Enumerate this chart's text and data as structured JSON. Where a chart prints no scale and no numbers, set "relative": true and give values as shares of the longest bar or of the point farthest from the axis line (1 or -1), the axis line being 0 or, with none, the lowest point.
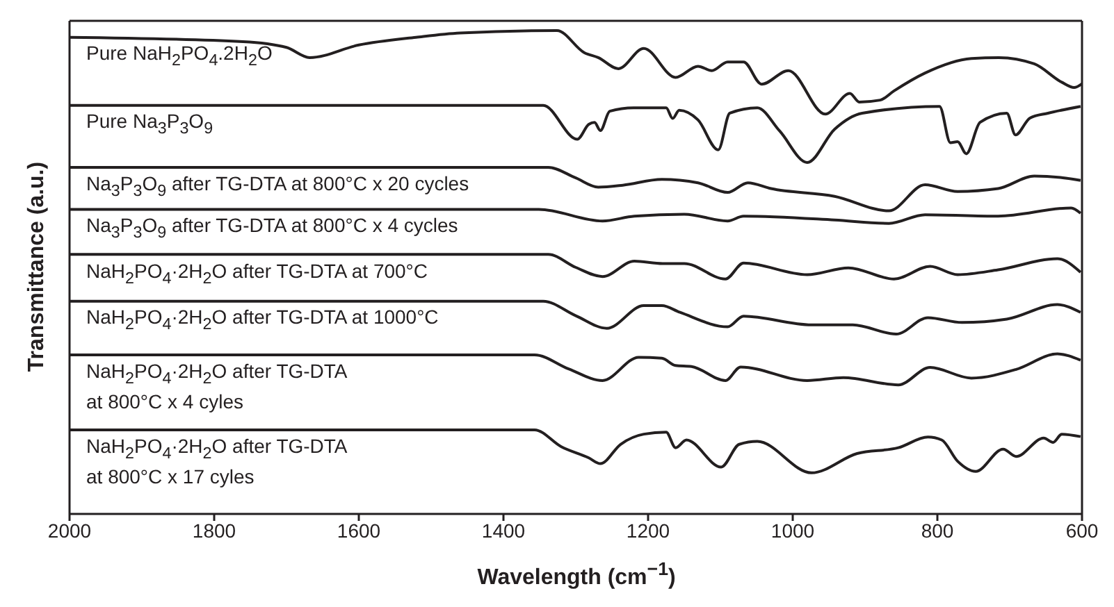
{
  "chart_data": {
    "type": "line",
    "relative": true,
    "xlabel": "Wavelength (cm$^{−1}$)",
    "ylabel": "Transmittance (a.u.)",
    "xlim": [
      2000,
      600
    ],
    "xticks": [
      2000,
      1800,
      1600,
      1400,
      1200,
      1000,
      800,
      600
    ],
    "tick_labels": "x",
    "marker": "none",
    "line_style": "solid",
    "series": [
      {
        "name": "Pure NaH$_{2}$PO$_{4}$.2H$_{2}$O",
        "color": "#231f20",
        "x": [
          2000,
          1760,
          1700,
          1668,
          1600,
          1521,
          1460,
          1326,
          1288,
          1269,
          1241,
          1206,
          1162,
          1131,
          1112,
          1090,
          1068,
          1043,
          1006,
          955,
          921,
          908,
          879,
          860,
          817,
          753,
          715,
          666,
          628,
          611,
          600
        ],
        "values": [
          0.986,
          0.977,
          0.965,
          0.944,
          0.97,
          0.986,
          0.995,
          1.0,
          0.954,
          0.944,
          0.921,
          0.963,
          0.903,
          0.926,
          0.917,
          0.935,
          0.935,
          0.889,
          0.917,
          0.827,
          0.87,
          0.852,
          0.856,
          0.875,
          0.912,
          0.942,
          0.944,
          0.931,
          0.893,
          0.882,
          0.89
        ]
      },
      {
        "name": "Pure Na$_{3}$P$_{3}$O$_{9}$",
        "color": "#231f20",
        "x": [
          2000,
          1345,
          1298,
          1282,
          1274,
          1266,
          1253,
          1220,
          1175,
          1166,
          1157,
          1131,
          1103,
          1087,
          1049,
          1018,
          980,
          942,
          904,
          797,
          782,
          772,
          760,
          741,
          704,
          692,
          672,
          647,
          602
        ],
        "values": [
          0.845,
          0.845,
          0.775,
          0.806,
          0.81,
          0.793,
          0.833,
          0.84,
          0.84,
          0.818,
          0.835,
          0.815,
          0.753,
          0.829,
          0.84,
          0.792,
          0.727,
          0.796,
          0.829,
          0.843,
          0.768,
          0.77,
          0.745,
          0.81,
          0.829,
          0.784,
          0.819,
          0.829,
          0.843
        ]
      },
      {
        "name": "Na$_{3}$P$_{3}$O$_{9}$ after TG-DTA at 800°C x 20 cycles",
        "color": "#231f20",
        "x": [
          2000,
          1338,
          1300,
          1269,
          1235,
          1181,
          1131,
          1090,
          1062,
          1030,
          942,
          867,
          817,
          772,
          716,
          666,
          630,
          602
        ],
        "values": [
          0.717,
          0.717,
          0.695,
          0.676,
          0.68,
          0.692,
          0.685,
          0.665,
          0.685,
          0.673,
          0.657,
          0.627,
          0.681,
          0.667,
          0.673,
          0.699,
          0.696,
          0.69
        ]
      },
      {
        "name": "Na$_{3}$P$_{3}$O$_{9}$ after TG-DTA at 800°C x 4 cycles",
        "color": "#231f20",
        "x": [
          2000,
          1351,
          1263,
          1219,
          1150,
          1090,
          1068,
          942,
          867,
          817,
          716,
          615,
          602
        ],
        "values": [
          0.63,
          0.63,
          0.606,
          0.616,
          0.62,
          0.606,
          0.616,
          0.608,
          0.601,
          0.619,
          0.616,
          0.633,
          0.622
        ]
      },
      {
        "name": "NaH$_{2}$PO$_{4}$·2H$_{2}$O after TG-DTA at 700°C",
        "color": "#231f20",
        "x": [
          2000,
          1338,
          1300,
          1263,
          1219,
          1180,
          1150,
          1093,
          1068,
          980,
          923,
          860,
          810,
          772,
          716,
          634,
          602
        ],
        "values": [
          0.537,
          0.537,
          0.51,
          0.491,
          0.523,
          0.518,
          0.518,
          0.486,
          0.519,
          0.495,
          0.509,
          0.486,
          0.512,
          0.495,
          0.505,
          0.528,
          0.5
        ]
      },
      {
        "name": "NaH$_{2}$PO$_{4}$·2H$_{2}$O after TG-DTA at 1000°C",
        "color": "#231f20",
        "x": [
          2000,
          1345,
          1300,
          1257,
          1206,
          1181,
          1156,
          1090,
          1068,
          974,
          917,
          857,
          813,
          766,
          704,
          634,
          602
        ],
        "values": [
          0.44,
          0.44,
          0.41,
          0.384,
          0.431,
          0.431,
          0.417,
          0.387,
          0.409,
          0.391,
          0.391,
          0.372,
          0.406,
          0.396,
          0.403,
          0.433,
          0.417
        ]
      },
      {
        "name": "NaH$_{2}$PO$_{4}$·2H$_{2}$O after TG-DTA at 800°C x 4 cyles",
        "color": "#231f20",
        "x": [
          2000,
          1357,
          1310,
          1263,
          1213,
          1181,
          1162,
          1140,
          1093,
          1072,
          980,
          930,
          854,
          810,
          753,
          691,
          634,
          602
        ],
        "values": [
          0.329,
          0.329,
          0.3,
          0.276,
          0.324,
          0.322,
          0.307,
          0.305,
          0.276,
          0.304,
          0.276,
          0.282,
          0.267,
          0.303,
          0.281,
          0.299,
          0.331,
          0.318
        ]
      },
      {
        "name": "NaH$_{2}$PO$_{4}$·2H$_{2}$O after TG-DTA at 800°C x 17 cyles",
        "color": "#231f20",
        "x": [
          2000,
          1357,
          1320,
          1282,
          1266,
          1238,
          1206,
          1175,
          1162,
          1147,
          1099,
          1074,
          1049,
          974,
          911,
          854,
          813,
          794,
          772,
          747,
          709,
          691,
          653,
          640,
          628,
          602
        ],
        "values": [
          0.174,
          0.174,
          0.139,
          0.116,
          0.104,
          0.144,
          0.165,
          0.169,
          0.137,
          0.153,
          0.097,
          0.144,
          0.15,
          0.085,
          0.125,
          0.137,
          0.159,
          0.153,
          0.109,
          0.088,
          0.134,
          0.119,
          0.157,
          0.148,
          0.165,
          0.16
        ]
      }
    ]
  }
}
